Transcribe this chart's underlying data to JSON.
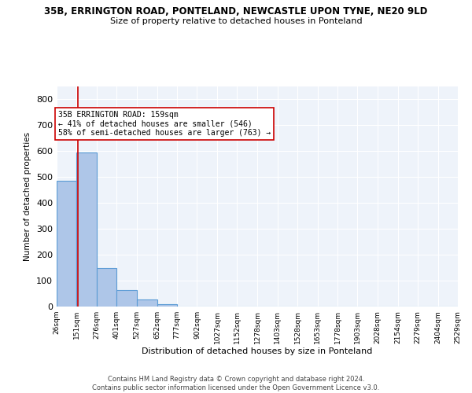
{
  "title1": "35B, ERRINGTON ROAD, PONTELAND, NEWCASTLE UPON TYNE, NE20 9LD",
  "title2": "Size of property relative to detached houses in Ponteland",
  "xlabel": "Distribution of detached houses by size in Ponteland",
  "ylabel": "Number of detached properties",
  "bar_edges": [
    26,
    151,
    276,
    401,
    527,
    652,
    777,
    902,
    1027,
    1152,
    1278,
    1403,
    1528,
    1653,
    1778,
    1903,
    2028,
    2154,
    2279,
    2404,
    2529
  ],
  "bar_heights": [
    487,
    595,
    150,
    63,
    28,
    10,
    0,
    0,
    0,
    0,
    0,
    0,
    0,
    0,
    0,
    0,
    0,
    0,
    0,
    0
  ],
  "bar_color": "#aec6e8",
  "bar_edgecolor": "#5b9bd5",
  "bg_color": "#eef3fa",
  "grid_color": "#ffffff",
  "vline_x": 159,
  "vline_color": "#cc0000",
  "annotation_text": "35B ERRINGTON ROAD: 159sqm\n← 41% of detached houses are smaller (546)\n58% of semi-detached houses are larger (763) →",
  "annotation_box_edgecolor": "#cc0000",
  "ylim": [
    0,
    850
  ],
  "yticks": [
    0,
    100,
    200,
    300,
    400,
    500,
    600,
    700,
    800
  ],
  "footer": "Contains HM Land Registry data © Crown copyright and database right 2024.\nContains public sector information licensed under the Open Government Licence v3.0.",
  "tick_labels": [
    "26sqm",
    "151sqm",
    "276sqm",
    "401sqm",
    "527sqm",
    "652sqm",
    "777sqm",
    "902sqm",
    "1027sqm",
    "1152sqm",
    "1278sqm",
    "1403sqm",
    "1528sqm",
    "1653sqm",
    "1778sqm",
    "1903sqm",
    "2028sqm",
    "2154sqm",
    "2279sqm",
    "2404sqm",
    "2529sqm"
  ]
}
